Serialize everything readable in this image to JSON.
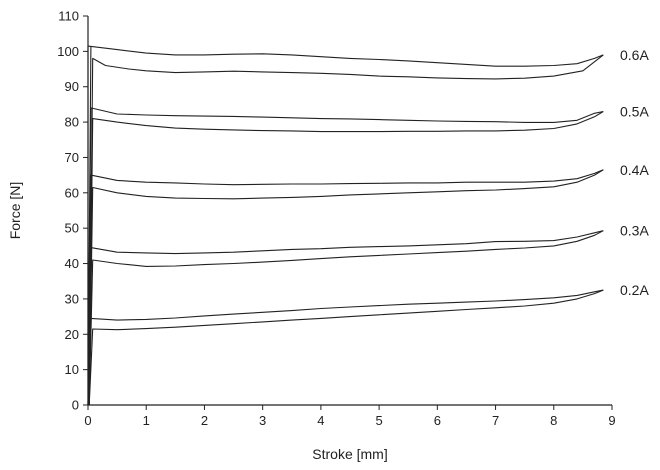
{
  "chart_data": {
    "type": "line",
    "title": "",
    "xlabel": "Stroke [mm]",
    "ylabel": "Force [N]",
    "xlim": [
      0,
      9
    ],
    "ylim": [
      0,
      110
    ],
    "xticks": [
      0,
      1,
      2,
      3,
      4,
      5,
      6,
      7,
      8,
      9
    ],
    "yticks": [
      0,
      10,
      20,
      30,
      40,
      50,
      60,
      70,
      80,
      90,
      100,
      110
    ],
    "grid": false,
    "legend": "inline-right",
    "series": [
      {
        "name": "0.6A",
        "upper": [
          [
            0.0,
            101.5
          ],
          [
            0.5,
            100.5
          ],
          [
            1.0,
            99.5
          ],
          [
            1.5,
            99.0
          ],
          [
            2.0,
            99.0
          ],
          [
            2.5,
            99.2
          ],
          [
            3.0,
            99.3
          ],
          [
            3.5,
            99.0
          ],
          [
            4.0,
            98.5
          ],
          [
            4.5,
            98.0
          ],
          [
            5.0,
            97.7
          ],
          [
            5.5,
            97.3
          ],
          [
            6.0,
            96.8
          ],
          [
            6.5,
            96.3
          ],
          [
            7.0,
            95.8
          ],
          [
            7.5,
            95.8
          ],
          [
            8.0,
            96.0
          ],
          [
            8.4,
            96.5
          ],
          [
            8.7,
            98.0
          ],
          [
            8.85,
            99.0
          ]
        ],
        "lower": [
          [
            0.08,
            98.0
          ],
          [
            0.3,
            96.0
          ],
          [
            0.7,
            95.0
          ],
          [
            1.0,
            94.5
          ],
          [
            1.5,
            94.0
          ],
          [
            2.0,
            94.2
          ],
          [
            2.5,
            94.4
          ],
          [
            3.0,
            94.2
          ],
          [
            3.5,
            94.0
          ],
          [
            4.0,
            93.8
          ],
          [
            4.5,
            93.5
          ],
          [
            5.0,
            93.0
          ],
          [
            5.5,
            92.8
          ],
          [
            6.0,
            92.5
          ],
          [
            6.5,
            92.3
          ],
          [
            7.0,
            92.2
          ],
          [
            7.5,
            92.4
          ],
          [
            8.0,
            93.0
          ],
          [
            8.5,
            94.5
          ],
          [
            8.85,
            99.0
          ]
        ]
      },
      {
        "name": "0.5A",
        "upper": [
          [
            0.05,
            84.0
          ],
          [
            0.5,
            82.3
          ],
          [
            1.0,
            82.0
          ],
          [
            1.5,
            81.8
          ],
          [
            2.0,
            81.7
          ],
          [
            2.5,
            81.6
          ],
          [
            3.0,
            81.4
          ],
          [
            3.5,
            81.2
          ],
          [
            4.0,
            81.0
          ],
          [
            4.5,
            80.9
          ],
          [
            5.0,
            80.7
          ],
          [
            5.5,
            80.5
          ],
          [
            6.0,
            80.3
          ],
          [
            6.5,
            80.2
          ],
          [
            7.0,
            80.1
          ],
          [
            7.5,
            79.9
          ],
          [
            8.0,
            79.9
          ],
          [
            8.4,
            80.5
          ],
          [
            8.7,
            82.5
          ],
          [
            8.85,
            83.0
          ]
        ],
        "lower": [
          [
            0.08,
            81.0
          ],
          [
            0.5,
            80.0
          ],
          [
            1.0,
            79.0
          ],
          [
            1.5,
            78.3
          ],
          [
            2.0,
            78.0
          ],
          [
            2.5,
            77.8
          ],
          [
            3.0,
            77.6
          ],
          [
            3.5,
            77.5
          ],
          [
            4.0,
            77.3
          ],
          [
            4.5,
            77.3
          ],
          [
            5.0,
            77.3
          ],
          [
            5.5,
            77.4
          ],
          [
            6.0,
            77.4
          ],
          [
            6.5,
            77.5
          ],
          [
            7.0,
            77.5
          ],
          [
            7.5,
            77.7
          ],
          [
            8.0,
            78.2
          ],
          [
            8.4,
            79.5
          ],
          [
            8.7,
            81.5
          ],
          [
            8.85,
            83.0
          ]
        ]
      },
      {
        "name": "0.4A",
        "upper": [
          [
            0.05,
            65.0
          ],
          [
            0.5,
            63.5
          ],
          [
            1.0,
            63.0
          ],
          [
            1.5,
            62.8
          ],
          [
            2.0,
            62.5
          ],
          [
            2.5,
            62.3
          ],
          [
            3.0,
            62.4
          ],
          [
            3.5,
            62.5
          ],
          [
            4.0,
            62.5
          ],
          [
            4.5,
            62.6
          ],
          [
            5.0,
            62.7
          ],
          [
            5.5,
            62.8
          ],
          [
            6.0,
            62.8
          ],
          [
            6.5,
            63.0
          ],
          [
            7.0,
            63.0
          ],
          [
            7.5,
            63.0
          ],
          [
            8.0,
            63.3
          ],
          [
            8.4,
            64.0
          ],
          [
            8.7,
            65.5
          ],
          [
            8.85,
            66.5
          ]
        ],
        "lower": [
          [
            0.08,
            61.5
          ],
          [
            0.5,
            60.0
          ],
          [
            1.0,
            59.0
          ],
          [
            1.5,
            58.5
          ],
          [
            2.0,
            58.4
          ],
          [
            2.5,
            58.3
          ],
          [
            3.0,
            58.5
          ],
          [
            3.5,
            58.7
          ],
          [
            4.0,
            59.0
          ],
          [
            4.5,
            59.4
          ],
          [
            5.0,
            59.7
          ],
          [
            5.5,
            60.0
          ],
          [
            6.0,
            60.3
          ],
          [
            6.5,
            60.6
          ],
          [
            7.0,
            60.8
          ],
          [
            7.5,
            61.2
          ],
          [
            8.0,
            61.7
          ],
          [
            8.4,
            63.0
          ],
          [
            8.7,
            65.0
          ],
          [
            8.85,
            66.5
          ]
        ]
      },
      {
        "name": "0.3A",
        "upper": [
          [
            0.05,
            44.5
          ],
          [
            0.5,
            43.2
          ],
          [
            1.0,
            43.0
          ],
          [
            1.5,
            42.8
          ],
          [
            2.0,
            43.0
          ],
          [
            2.5,
            43.2
          ],
          [
            3.0,
            43.6
          ],
          [
            3.5,
            44.0
          ],
          [
            4.0,
            44.2
          ],
          [
            4.5,
            44.6
          ],
          [
            5.0,
            44.8
          ],
          [
            5.5,
            45.0
          ],
          [
            6.0,
            45.3
          ],
          [
            6.5,
            45.6
          ],
          [
            7.0,
            46.2
          ],
          [
            7.5,
            46.3
          ],
          [
            8.0,
            46.5
          ],
          [
            8.4,
            47.5
          ],
          [
            8.7,
            48.7
          ],
          [
            8.85,
            49.3
          ]
        ],
        "lower": [
          [
            0.08,
            41.0
          ],
          [
            0.5,
            40.0
          ],
          [
            1.0,
            39.2
          ],
          [
            1.5,
            39.3
          ],
          [
            2.0,
            39.7
          ],
          [
            2.5,
            40.0
          ],
          [
            3.0,
            40.4
          ],
          [
            3.5,
            40.9
          ],
          [
            4.0,
            41.4
          ],
          [
            4.5,
            41.9
          ],
          [
            5.0,
            42.3
          ],
          [
            5.5,
            42.7
          ],
          [
            6.0,
            43.1
          ],
          [
            6.5,
            43.5
          ],
          [
            7.0,
            44.0
          ],
          [
            7.5,
            44.4
          ],
          [
            8.0,
            45.0
          ],
          [
            8.4,
            46.3
          ],
          [
            8.7,
            48.0
          ],
          [
            8.85,
            49.3
          ]
        ]
      },
      {
        "name": "0.2A",
        "upper": [
          [
            0.05,
            24.5
          ],
          [
            0.5,
            24.0
          ],
          [
            1.0,
            24.2
          ],
          [
            1.5,
            24.6
          ],
          [
            2.0,
            25.2
          ],
          [
            2.5,
            25.7
          ],
          [
            3.0,
            26.2
          ],
          [
            3.5,
            26.7
          ],
          [
            4.0,
            27.3
          ],
          [
            4.5,
            27.7
          ],
          [
            5.0,
            28.1
          ],
          [
            5.5,
            28.5
          ],
          [
            6.0,
            28.8
          ],
          [
            6.5,
            29.1
          ],
          [
            7.0,
            29.4
          ],
          [
            7.5,
            29.8
          ],
          [
            8.0,
            30.3
          ],
          [
            8.4,
            31.0
          ],
          [
            8.7,
            32.0
          ],
          [
            8.85,
            32.5
          ]
        ],
        "lower": [
          [
            0.08,
            21.5
          ],
          [
            0.5,
            21.3
          ],
          [
            1.0,
            21.6
          ],
          [
            1.5,
            22.0
          ],
          [
            2.0,
            22.5
          ],
          [
            2.5,
            23.0
          ],
          [
            3.0,
            23.5
          ],
          [
            3.5,
            24.0
          ],
          [
            4.0,
            24.5
          ],
          [
            4.5,
            25.0
          ],
          [
            5.0,
            25.5
          ],
          [
            5.5,
            26.0
          ],
          [
            6.0,
            26.5
          ],
          [
            6.5,
            27.0
          ],
          [
            7.0,
            27.5
          ],
          [
            7.5,
            28.0
          ],
          [
            8.0,
            28.8
          ],
          [
            8.4,
            30.0
          ],
          [
            8.7,
            31.5
          ],
          [
            8.85,
            32.5
          ]
        ]
      }
    ],
    "initial_rise": [
      [
        0.0,
        0.0
      ],
      [
        0.05,
        101.5
      ]
    ]
  }
}
